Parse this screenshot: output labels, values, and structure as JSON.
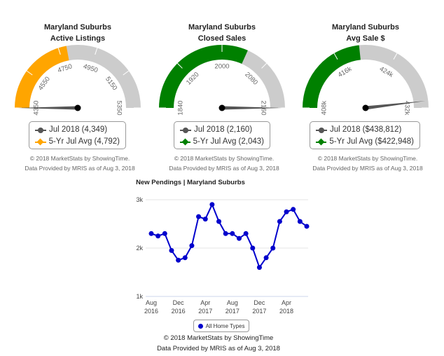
{
  "colors": {
    "gray": "#cccccc",
    "orange": "#ffa500",
    "green": "#008000",
    "needle": "#555555",
    "line": "#0000cc"
  },
  "gauges": [
    {
      "title_line1": "Maryland Suburbs",
      "title_line2": "Active Listings",
      "ticks": [
        "4350",
        "4550",
        "4750",
        "4950",
        "5150",
        "5350"
      ],
      "range": [
        4350,
        5350
      ],
      "value": 4349,
      "avg": 4792,
      "fill_color": "orange",
      "legend": {
        "value_label": "Jul 2018 (4,349)",
        "avg_label": "5-Yr Jul Avg (4,792)"
      }
    },
    {
      "title_line1": "Maryland Suburbs",
      "title_line2": "Closed Sales",
      "ticks": [
        "1840",
        "1920",
        "2000",
        "2080",
        "2160"
      ],
      "range": [
        1840,
        2160
      ],
      "value": 2160,
      "avg": 2043,
      "fill_color": "green",
      "legend": {
        "value_label": "Jul 2018 (2,160)",
        "avg_label": "5-Yr Jul Avg (2,043)"
      }
    },
    {
      "title_line1": "Maryland Suburbs",
      "title_line2": "Avg Sale $",
      "ticks": [
        "408k",
        "416k",
        "424k",
        "432k"
      ],
      "range": [
        408,
        440
      ],
      "value": 438.812,
      "avg": 422.948,
      "fill_color": "green",
      "legend": {
        "value_label": "Jul 2018 ($438,812)",
        "avg_label": "5-Yr Jul Avg ($422,948)"
      }
    }
  ],
  "credits": {
    "line1": "© 2018 MarketStats by ShowingTime.",
    "line2": "Data Provided by MRIS as of Aug 3, 2018"
  },
  "chart_data": {
    "type": "line",
    "title": "New Pendings | Maryland Suburbs",
    "x": [
      "2016-08",
      "2016-09",
      "2016-10",
      "2016-11",
      "2016-12",
      "2017-01",
      "2017-02",
      "2017-03",
      "2017-04",
      "2017-05",
      "2017-06",
      "2017-07",
      "2017-08",
      "2017-09",
      "2017-10",
      "2017-11",
      "2017-12",
      "2018-01",
      "2018-02",
      "2018-03",
      "2018-04",
      "2018-05",
      "2018-06",
      "2018-07"
    ],
    "series": [
      {
        "name": "All Home Types",
        "values": [
          2300,
          2250,
          2300,
          1950,
          1750,
          1800,
          2050,
          2650,
          2600,
          2900,
          2550,
          2300,
          2300,
          2200,
          2300,
          2000,
          1600,
          1800,
          2000,
          2550,
          2750,
          2800,
          2550,
          2450
        ]
      }
    ],
    "xlabel": "",
    "ylabel": "",
    "ylim": [
      1000,
      3000
    ],
    "yticks": [
      "1k",
      "2k",
      "3k"
    ],
    "xticks": [
      {
        "month": "Aug",
        "year": "2016"
      },
      {
        "month": "Dec",
        "year": "2016"
      },
      {
        "month": "Apr",
        "year": "2017"
      },
      {
        "month": "Aug",
        "year": "2017"
      },
      {
        "month": "Dec",
        "year": "2017"
      },
      {
        "month": "Apr",
        "year": "2018"
      }
    ],
    "grid": true,
    "legend": "bottom",
    "credit_line1": "© 2018 MarketStats by ShowingTime",
    "credit_line2": "Data Provided by MRIS as of Aug 3, 2018"
  }
}
